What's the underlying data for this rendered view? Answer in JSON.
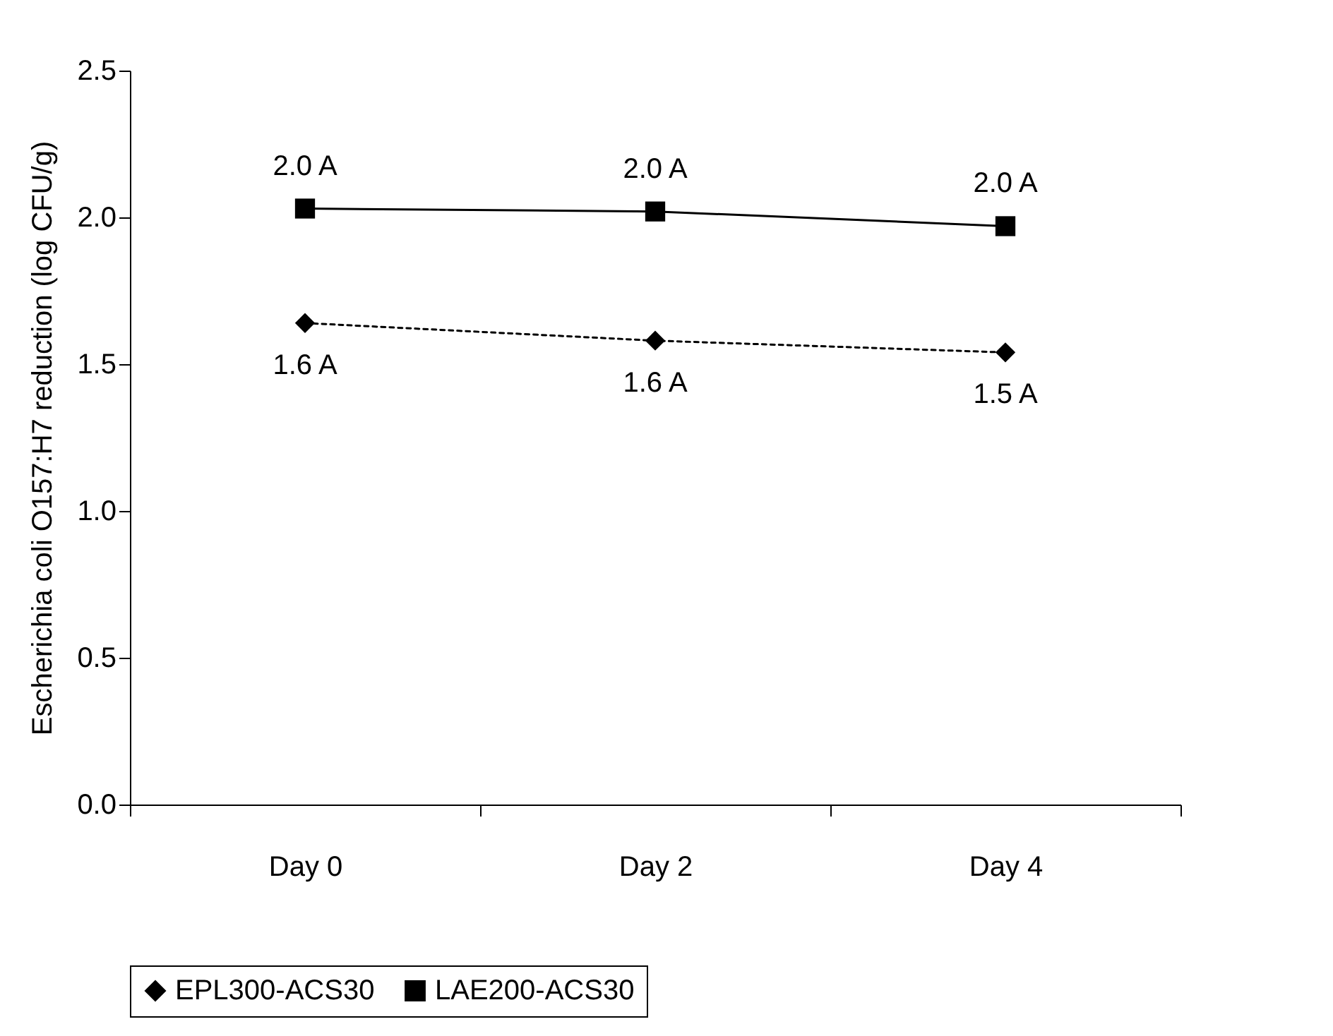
{
  "chart_data": {
    "type": "line",
    "ylabel": "Escherichia coli O157:H7 reduction (log CFU/g)",
    "categories": [
      "Day 0",
      "Day 2",
      "Day 4"
    ],
    "series": [
      {
        "name": "EPL300-ACS30",
        "color": "#000000",
        "marker": "diamond",
        "line_style": "dotted",
        "values": [
          1.64,
          1.58,
          1.54
        ],
        "value_labels": [
          "1.6 A",
          "1.6 A",
          "1.5 A"
        ]
      },
      {
        "name": "LAE200-ACS30",
        "color": "#000000",
        "marker": "square",
        "line_style": "solid",
        "values": [
          2.03,
          2.02,
          1.97
        ],
        "value_labels": [
          "2.0 A",
          "2.0 A",
          "2.0 A"
        ]
      }
    ],
    "ylim": [
      0,
      2.5
    ],
    "yticks": [
      {
        "value": 0,
        "label": "0.0"
      },
      0.5,
      {
        "value": 1,
        "label": "1.0"
      },
      1.5,
      {
        "value": 2,
        "label": "2.0"
      },
      2.5
    ],
    "grid": false,
    "legend": "bottom"
  }
}
